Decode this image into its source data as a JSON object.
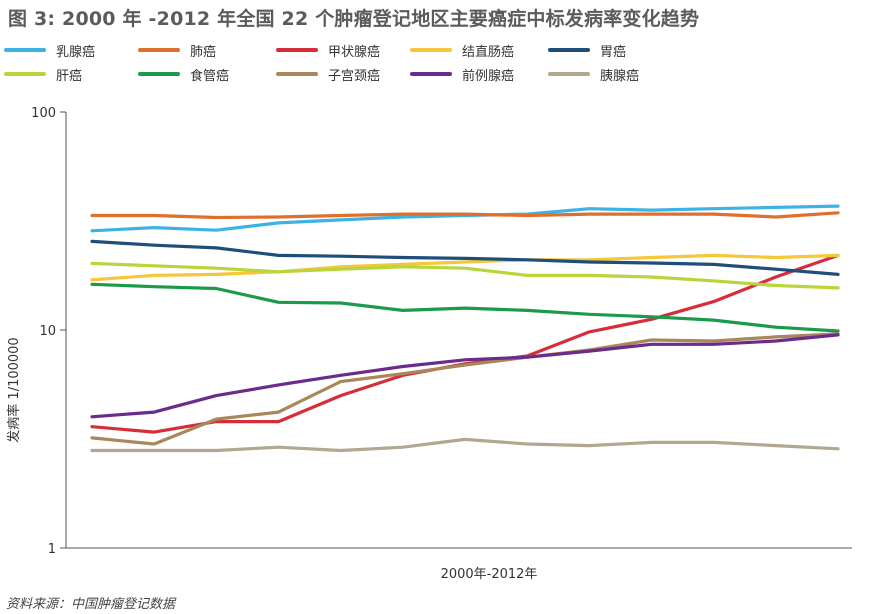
{
  "title": "图 3: 2000 年 -2012 年全国 22 个肿瘤登记地区主要癌症中标发病率变化趋势",
  "source": "资料来源：中国肿瘤登记数据",
  "chart_data": {
    "type": "line",
    "title": "图 3: 2000 年 -2012 年全国 22 个肿瘤登记地区主要癌症中标发病率变化趋势",
    "xlabel": "2000年-2012年",
    "ylabel": "发病率 1/100000",
    "y_scale": "log",
    "ylim": [
      1,
      100
    ],
    "y_ticks": [
      "1",
      "10",
      "100"
    ],
    "x": [
      2000,
      2001,
      2002,
      2003,
      2004,
      2005,
      2006,
      2007,
      2008,
      2009,
      2010,
      2011,
      2012
    ],
    "grid": false,
    "legend_position": "top",
    "series": [
      {
        "name": "乳腺癌",
        "color": "#3db3e3",
        "values": [
          28.5,
          29.5,
          28.7,
          31.0,
          32.0,
          33.0,
          33.5,
          34.0,
          36.0,
          35.5,
          36.0,
          36.5,
          37.0
        ]
      },
      {
        "name": "肺癌",
        "color": "#e06f2c",
        "values": [
          33.5,
          33.5,
          32.8,
          33.0,
          33.5,
          34.0,
          34.0,
          33.5,
          34.0,
          34.0,
          34.0,
          33.0,
          34.5
        ]
      },
      {
        "name": "甲状腺癌",
        "color": "#d62d3a",
        "values": [
          3.6,
          3.4,
          3.8,
          3.8,
          5.0,
          6.2,
          7.0,
          7.6,
          9.8,
          11.2,
          13.5,
          17.5,
          22.0
        ]
      },
      {
        "name": "结直肠癌",
        "color": "#f5c73a",
        "values": [
          17.0,
          17.8,
          18.0,
          18.5,
          19.5,
          20.0,
          20.5,
          21.0,
          21.0,
          21.5,
          22.0,
          21.5,
          22.0
        ]
      },
      {
        "name": "胃癌",
        "color": "#1f4e79",
        "values": [
          25.5,
          24.5,
          23.8,
          22.0,
          21.8,
          21.5,
          21.3,
          21.0,
          20.5,
          20.3,
          20.0,
          19.0,
          18.0
        ]
      },
      {
        "name": "肝癌",
        "color": "#b8d63c",
        "values": [
          20.2,
          19.7,
          19.2,
          18.5,
          19.0,
          19.5,
          19.2,
          17.8,
          17.8,
          17.5,
          16.8,
          16.0,
          15.6
        ]
      },
      {
        "name": "食管癌",
        "color": "#1a9a4a",
        "values": [
          16.2,
          15.8,
          15.5,
          13.4,
          13.3,
          12.3,
          12.6,
          12.3,
          11.8,
          11.5,
          11.1,
          10.3,
          9.9
        ]
      },
      {
        "name": "子宫颈癌",
        "color": "#a8875a",
        "values": [
          3.2,
          3.0,
          3.9,
          4.2,
          5.8,
          6.3,
          6.9,
          7.5,
          8.1,
          9.0,
          8.9,
          9.3,
          9.6
        ]
      },
      {
        "name": "前例腺癌",
        "color": "#6a2c8c",
        "values": [
          4.0,
          4.2,
          5.0,
          5.6,
          6.2,
          6.8,
          7.3,
          7.5,
          8.0,
          8.6,
          8.6,
          8.9,
          9.5
        ]
      },
      {
        "name": "胰腺癌",
        "color": "#b1a890",
        "values": [
          2.8,
          2.8,
          2.8,
          2.9,
          2.8,
          2.9,
          3.15,
          3.0,
          2.95,
          3.05,
          3.05,
          2.95,
          2.85
        ]
      }
    ]
  }
}
